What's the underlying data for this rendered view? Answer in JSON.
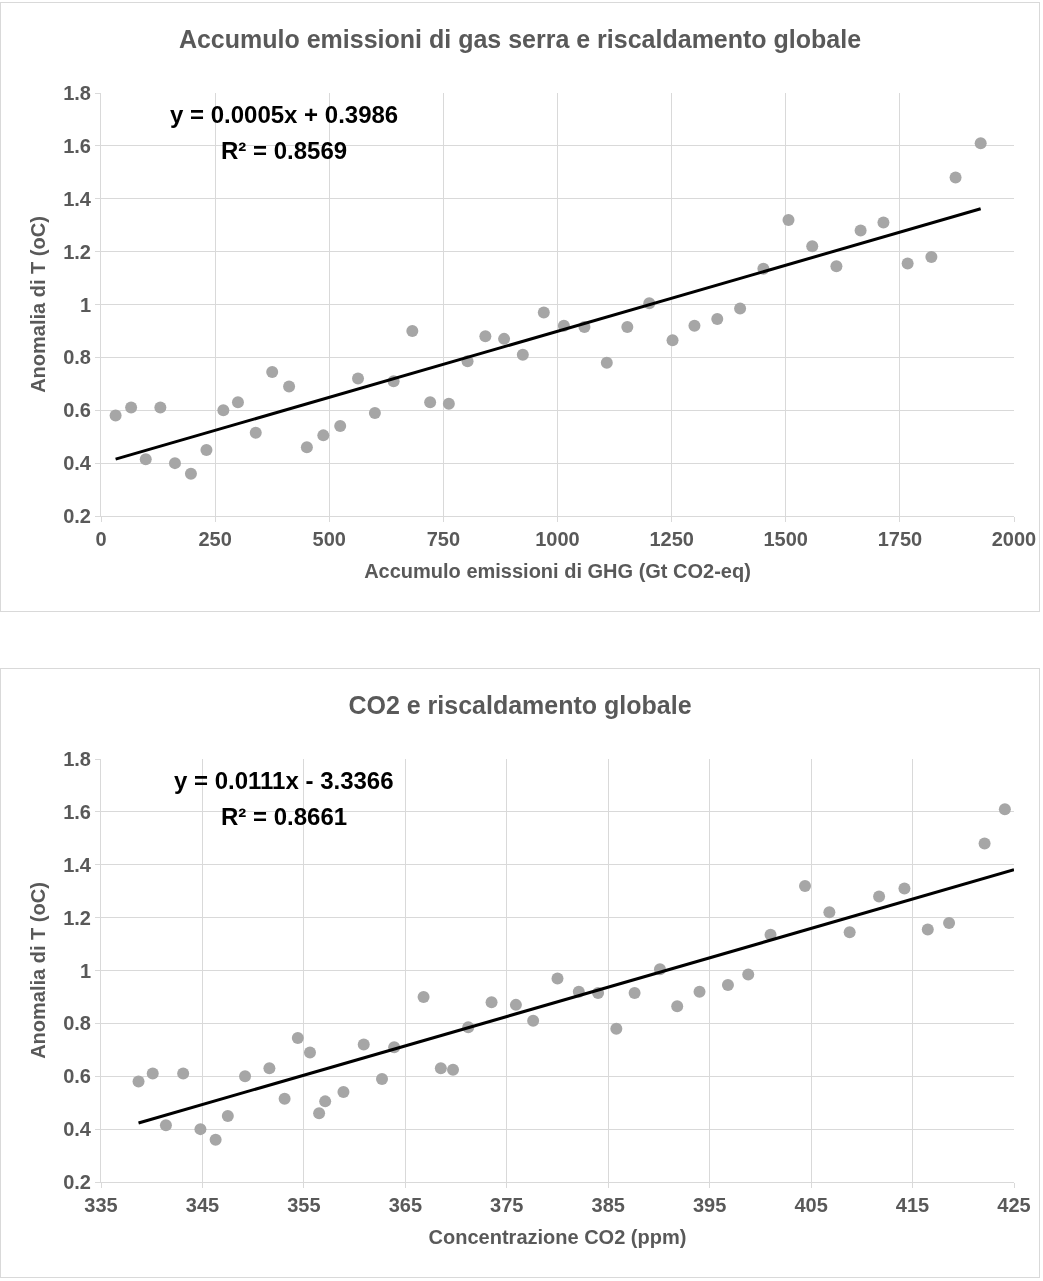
{
  "chart_data": [
    {
      "type": "scatter",
      "title": "Accumulo emissioni di gas serra e riscaldamento globale",
      "xlabel": "Accumulo emissioni di GHG (Gt CO2-eq)",
      "ylabel": "Anomalia di T (oC)",
      "annotations": [
        "y = 0.0005x + 0.3986",
        "R² = 0.8569"
      ],
      "xlim": [
        0,
        2000
      ],
      "xticks": [
        0,
        250,
        500,
        750,
        1000,
        1250,
        1500,
        1750,
        2000
      ],
      "ylim": [
        0.2,
        1.8
      ],
      "yticks": [
        0.2,
        0.4,
        0.6,
        0.8,
        1,
        1.2,
        1.4,
        1.6,
        1.8
      ],
      "grid": true,
      "marker": "circle",
      "series": [
        {
          "color": "#a6a6a6",
          "x": [
            32,
            66,
            98,
            130,
            162,
            197,
            231,
            268,
            300,
            339,
            375,
            412,
            451,
            487,
            524,
            563,
            600,
            641,
            682,
            721,
            762,
            803,
            842,
            883,
            924,
            970,
            1014,
            1059,
            1108,
            1153,
            1201,
            1252,
            1300,
            1350,
            1400,
            1451,
            1506,
            1558,
            1611,
            1664,
            1714,
            1767,
            1819,
            1872,
            1927
          ],
          "values": [
            0.58,
            0.61,
            0.415,
            0.61,
            0.4,
            0.36,
            0.45,
            0.6,
            0.63,
            0.515,
            0.745,
            0.69,
            0.46,
            0.505,
            0.54,
            0.72,
            0.59,
            0.71,
            0.9,
            0.63,
            0.625,
            0.785,
            0.88,
            0.87,
            0.81,
            0.97,
            0.92,
            0.915,
            0.78,
            0.915,
            1.005,
            0.865,
            0.92,
            0.945,
            0.985,
            1.135,
            1.32,
            1.22,
            1.145,
            1.28,
            1.31,
            1.155,
            1.18,
            1.48,
            1.61
          ]
        },
        {
          "type": "line",
          "color": "#000000",
          "marker": "none",
          "x": [
            32,
            1927
          ],
          "values": [
            0.415,
            1.362
          ]
        }
      ]
    },
    {
      "type": "scatter",
      "title": "CO2 e riscaldamento globale",
      "xlabel": "Concentrazione CO2 (ppm)",
      "ylabel": "Anomalia di T (oC)",
      "annotations": [
        "y = 0.0111x - 3.3366",
        "R² = 0.8661"
      ],
      "xlim": [
        335,
        425
      ],
      "xticks": [
        335,
        345,
        355,
        365,
        375,
        385,
        395,
        405,
        415,
        425
      ],
      "ylim": [
        0.2,
        1.8
      ],
      "yticks": [
        0.2,
        0.4,
        0.6,
        0.8,
        1,
        1.2,
        1.4,
        1.6,
        1.8
      ],
      "grid": true,
      "marker": "circle",
      "series": [
        {
          "color": "#a6a6a6",
          "x": [
            338.7,
            340.1,
            341.4,
            343.1,
            344.8,
            346.3,
            347.5,
            349.2,
            351.6,
            353.1,
            354.4,
            355.6,
            356.5,
            357.1,
            358.9,
            360.9,
            362.7,
            363.9,
            366.8,
            368.5,
            369.7,
            371.2,
            373.5,
            375.9,
            377.6,
            380.0,
            382.1,
            384.0,
            385.8,
            387.6,
            390.1,
            391.8,
            394.0,
            396.8,
            398.8,
            401.0,
            404.4,
            406.8,
            408.8,
            411.7,
            414.2,
            416.5,
            418.6,
            422.1,
            424.1
          ],
          "values": [
            0.58,
            0.61,
            0.415,
            0.61,
            0.4,
            0.36,
            0.45,
            0.6,
            0.63,
            0.515,
            0.745,
            0.69,
            0.46,
            0.505,
            0.54,
            0.72,
            0.59,
            0.71,
            0.9,
            0.63,
            0.625,
            0.785,
            0.88,
            0.87,
            0.81,
            0.97,
            0.92,
            0.915,
            0.78,
            0.915,
            1.005,
            0.865,
            0.92,
            0.945,
            0.985,
            1.135,
            1.32,
            1.22,
            1.145,
            1.28,
            1.31,
            1.155,
            1.18,
            1.48,
            1.61
          ]
        },
        {
          "type": "line",
          "color": "#000000",
          "marker": "none",
          "x": [
            338.7,
            425
          ],
          "values": [
            0.423,
            1.381
          ]
        }
      ]
    }
  ]
}
